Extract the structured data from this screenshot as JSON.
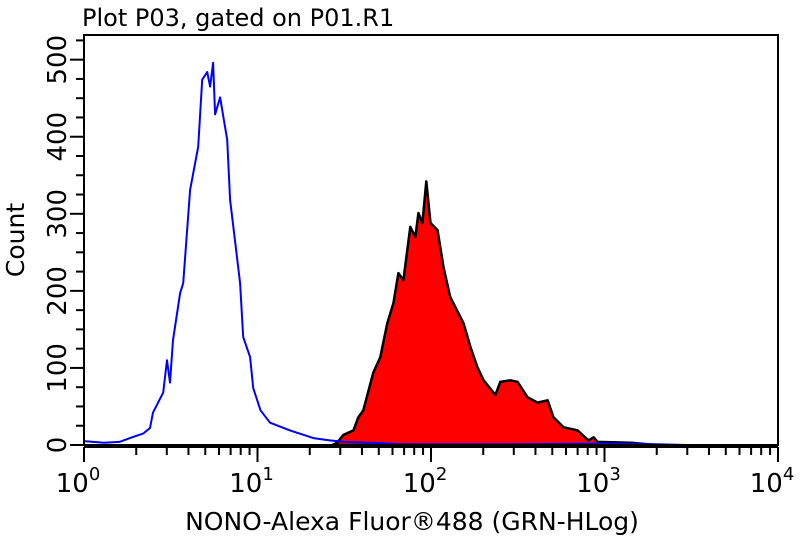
{
  "chart_data": {
    "type": "area",
    "title": "Plot P03, gated on P01.R1",
    "xlabel": "NONO-Alexa Fluor®488 (GRN-HLog)",
    "ylabel": "Count",
    "xscale": "log",
    "xlim": [
      1,
      10000
    ],
    "ylim": [
      0,
      532
    ],
    "x_ticks": [
      {
        "base": "10",
        "exp": "0",
        "value": 1
      },
      {
        "base": "10",
        "exp": "1",
        "value": 10
      },
      {
        "base": "10",
        "exp": "2",
        "value": 100
      },
      {
        "base": "10",
        "exp": "3",
        "value": 1000
      },
      {
        "base": "10",
        "exp": "4",
        "value": 10000
      }
    ],
    "y_ticks": [
      "0",
      "100",
      "200",
      "300",
      "400",
      "500"
    ],
    "grid": false,
    "series": [
      {
        "style": "line",
        "color": "#0000ff",
        "points": [
          [
            1.0,
            5
          ],
          [
            1.3,
            3
          ],
          [
            1.6,
            4
          ],
          [
            1.84,
            9
          ],
          [
            2.2,
            15
          ],
          [
            2.4,
            22
          ],
          [
            2.5,
            42
          ],
          [
            2.86,
            68
          ],
          [
            3.01,
            110
          ],
          [
            3.13,
            81
          ],
          [
            3.26,
            136
          ],
          [
            3.58,
            197
          ],
          [
            3.73,
            210
          ],
          [
            4.09,
            331
          ],
          [
            4.55,
            387
          ],
          [
            4.8,
            474
          ],
          [
            5.13,
            484
          ],
          [
            5.33,
            465
          ],
          [
            5.55,
            496
          ],
          [
            5.7,
            429
          ],
          [
            6.09,
            451
          ],
          [
            6.69,
            396
          ],
          [
            6.95,
            318
          ],
          [
            7.94,
            210
          ],
          [
            8.27,
            140
          ],
          [
            9.07,
            114
          ],
          [
            9.44,
            74
          ],
          [
            10.4,
            45
          ],
          [
            11.8,
            29
          ],
          [
            15.4,
            19
          ],
          [
            21,
            9
          ],
          [
            26,
            6
          ],
          [
            32,
            4
          ],
          [
            45,
            3
          ],
          [
            70,
            1
          ],
          [
            300,
            1
          ],
          [
            1000,
            2
          ],
          [
            2000,
            1
          ],
          [
            3000,
            0
          ]
        ]
      },
      {
        "style": "filled",
        "color": "#ff0000",
        "outline": "#000000",
        "points": [
          [
            27,
            0
          ],
          [
            28.8,
            3
          ],
          [
            31.2,
            13
          ],
          [
            35.7,
            19
          ],
          [
            38.1,
            36
          ],
          [
            40.7,
            45
          ],
          [
            46.5,
            94
          ],
          [
            51,
            114
          ],
          [
            56,
            158
          ],
          [
            60.7,
            184
          ],
          [
            64.9,
            223
          ],
          [
            69.3,
            214
          ],
          [
            76,
            283
          ],
          [
            81.3,
            270
          ],
          [
            84.6,
            301
          ],
          [
            89.2,
            288
          ],
          [
            94,
            342
          ],
          [
            99.3,
            288
          ],
          [
            109,
            279
          ],
          [
            118,
            231
          ],
          [
            129,
            192
          ],
          [
            154,
            158
          ],
          [
            169,
            127
          ],
          [
            185,
            101
          ],
          [
            201,
            84
          ],
          [
            235,
            65
          ],
          [
            251,
            82
          ],
          [
            287,
            84
          ],
          [
            315,
            82
          ],
          [
            360,
            62
          ],
          [
            411,
            55
          ],
          [
            470,
            58
          ],
          [
            508,
            36
          ],
          [
            581,
            23
          ],
          [
            700,
            19
          ],
          [
            809,
            6
          ],
          [
            865,
            10
          ],
          [
            912,
            4
          ],
          [
            1415,
            3
          ],
          [
            2000,
            0
          ]
        ]
      }
    ]
  }
}
